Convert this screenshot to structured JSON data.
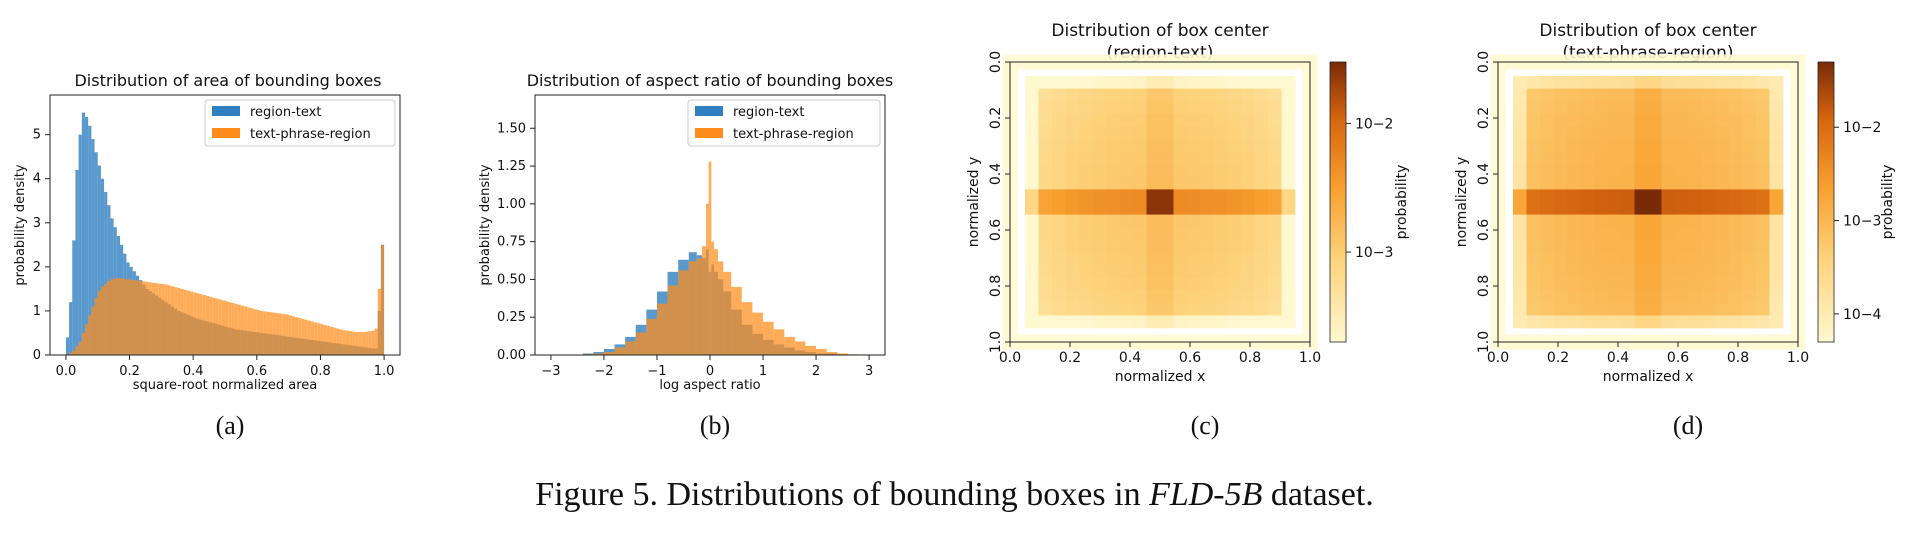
{
  "caption": {
    "prefix": "Figure 5. Distributions of bounding boxes in ",
    "dataset": "FLD-5B",
    "suffix": " dataset."
  },
  "colors": {
    "blue": "#2f7fc1",
    "orange": "#ff8c1a"
  },
  "chart_data": [
    {
      "id": "a",
      "panel_label": "(a)",
      "type": "bar",
      "title": "Distribution of area of bounding boxes",
      "xlabel": "square-root normalized area",
      "ylabel": "probability density",
      "xlim": [
        -0.05,
        1.05
      ],
      "ylim": [
        0,
        5.9
      ],
      "xticks": [
        0.0,
        0.2,
        0.4,
        0.6,
        0.8,
        1.0
      ],
      "xtick_labels": [
        "0.0",
        "0.2",
        "0.4",
        "0.6",
        "0.8",
        "1.0"
      ],
      "yticks": [
        0,
        1,
        2,
        3,
        4,
        5
      ],
      "ytick_labels": [
        "0",
        "1",
        "2",
        "3",
        "4",
        "5"
      ],
      "legend": {
        "position": "top-right",
        "entries": [
          "region-text",
          "text-phrase-region"
        ]
      },
      "bin_width": 0.01,
      "series": [
        {
          "name": "region-text",
          "color": "#2f7fc1",
          "values": [
            0.4,
            1.2,
            2.6,
            4.2,
            5.0,
            5.5,
            5.4,
            5.2,
            4.9,
            4.6,
            4.3,
            4.0,
            3.7,
            3.4,
            3.1,
            2.9,
            2.7,
            2.5,
            2.3,
            2.1,
            2.0,
            1.9,
            1.8,
            1.7,
            1.6,
            1.5,
            1.45,
            1.4,
            1.35,
            1.3,
            1.25,
            1.2,
            1.15,
            1.1,
            1.05,
            1.0,
            0.97,
            0.94,
            0.91,
            0.88,
            0.85,
            0.82,
            0.8,
            0.78,
            0.76,
            0.74,
            0.72,
            0.7,
            0.68,
            0.66,
            0.64,
            0.62,
            0.6,
            0.58,
            0.57,
            0.56,
            0.55,
            0.54,
            0.53,
            0.52,
            0.51,
            0.5,
            0.49,
            0.48,
            0.47,
            0.46,
            0.45,
            0.44,
            0.43,
            0.42,
            0.41,
            0.4,
            0.39,
            0.38,
            0.37,
            0.36,
            0.35,
            0.34,
            0.33,
            0.32,
            0.31,
            0.3,
            0.29,
            0.28,
            0.27,
            0.26,
            0.25,
            0.24,
            0.23,
            0.22,
            0.21,
            0.2,
            0.19,
            0.18,
            0.17,
            0.16,
            0.15,
            0.15,
            1.0,
            2.5
          ]
        },
        {
          "name": "text-phrase-region",
          "color": "#ff8c1a",
          "values": [
            0.0,
            0.05,
            0.1,
            0.2,
            0.3,
            0.5,
            0.7,
            0.9,
            1.1,
            1.3,
            1.45,
            1.55,
            1.62,
            1.68,
            1.72,
            1.74,
            1.75,
            1.74,
            1.73,
            1.72,
            1.71,
            1.7,
            1.69,
            1.68,
            1.67,
            1.66,
            1.65,
            1.64,
            1.63,
            1.62,
            1.61,
            1.6,
            1.58,
            1.56,
            1.54,
            1.52,
            1.5,
            1.48,
            1.46,
            1.44,
            1.42,
            1.4,
            1.38,
            1.36,
            1.34,
            1.32,
            1.3,
            1.28,
            1.26,
            1.24,
            1.22,
            1.2,
            1.18,
            1.16,
            1.14,
            1.12,
            1.1,
            1.08,
            1.06,
            1.04,
            1.02,
            1.0,
            0.99,
            0.98,
            0.97,
            0.96,
            0.95,
            0.94,
            0.93,
            0.92,
            0.9,
            0.88,
            0.86,
            0.84,
            0.82,
            0.8,
            0.78,
            0.76,
            0.74,
            0.72,
            0.7,
            0.68,
            0.66,
            0.64,
            0.62,
            0.6,
            0.58,
            0.56,
            0.55,
            0.54,
            0.53,
            0.52,
            0.52,
            0.52,
            0.53,
            0.54,
            0.55,
            0.6,
            1.5,
            2.5
          ]
        }
      ]
    },
    {
      "id": "b",
      "panel_label": "(b)",
      "type": "bar",
      "title": "Distribution of aspect ratio of bounding boxes",
      "xlabel": "log aspect ratio",
      "ylabel": "probability density",
      "xlim": [
        -3.3,
        3.3
      ],
      "ylim": [
        0,
        1.72
      ],
      "xticks": [
        -3,
        -2,
        -1,
        0,
        1,
        2,
        3
      ],
      "xtick_labels": [
        "−3",
        "−2",
        "−1",
        "0",
        "1",
        "2",
        "3"
      ],
      "yticks": [
        0,
        0.25,
        0.5,
        0.75,
        1.0,
        1.25,
        1.5
      ],
      "ytick_labels": [
        "0.00",
        "0.25",
        "0.50",
        "0.75",
        "1.00",
        "1.25",
        "1.50"
      ],
      "legend": {
        "position": "top-right",
        "entries": [
          "region-text",
          "text-phrase-region"
        ]
      },
      "x": [
        -2.5,
        -2.3,
        -2.1,
        -1.9,
        -1.7,
        -1.5,
        -1.3,
        -1.1,
        -0.9,
        -0.7,
        -0.5,
        -0.3,
        -0.2,
        -0.1,
        -0.05,
        0.0,
        0.05,
        0.1,
        0.2,
        0.3,
        0.5,
        0.7,
        0.9,
        1.1,
        1.3,
        1.5,
        1.7,
        1.9,
        2.1,
        2.3,
        2.5,
        2.7
      ],
      "series": [
        {
          "name": "region-text",
          "color": "#2f7fc1",
          "values": [
            0.0,
            0.01,
            0.02,
            0.04,
            0.07,
            0.12,
            0.2,
            0.3,
            0.42,
            0.55,
            0.63,
            0.68,
            0.66,
            0.64,
            0.7,
            0.55,
            0.6,
            0.55,
            0.5,
            0.42,
            0.3,
            0.2,
            0.14,
            0.1,
            0.07,
            0.05,
            0.03,
            0.02,
            0.01,
            0.01,
            0.005,
            0.0
          ]
        },
        {
          "name": "text-phrase-region",
          "color": "#ff8c1a",
          "values": [
            0.0,
            0.005,
            0.01,
            0.02,
            0.05,
            0.09,
            0.15,
            0.24,
            0.34,
            0.46,
            0.56,
            0.62,
            0.64,
            0.72,
            1.0,
            1.28,
            0.75,
            0.7,
            0.62,
            0.55,
            0.45,
            0.35,
            0.28,
            0.22,
            0.17,
            0.12,
            0.09,
            0.06,
            0.04,
            0.02,
            0.01,
            0.005
          ]
        }
      ]
    },
    {
      "id": "c",
      "panel_label": "(c)",
      "type": "heatmap",
      "title": "Distribution of box center",
      "subtitle": "(region-text)",
      "xlabel": "normalized x",
      "ylabel": "normalized y",
      "xlim": [
        0.0,
        1.0
      ],
      "ylim": [
        1.0,
        0.0
      ],
      "xticks": [
        0.0,
        0.2,
        0.4,
        0.6,
        0.8,
        1.0
      ],
      "xtick_labels": [
        "0.0",
        "0.2",
        "0.4",
        "0.6",
        "0.8",
        "1.0"
      ],
      "yticks": [
        0.0,
        0.2,
        0.4,
        0.6,
        0.8,
        1.0
      ],
      "ytick_labels": [
        "0.0",
        "0.2",
        "0.4",
        "0.6",
        "0.8",
        "1.0"
      ],
      "grid_size": 20,
      "colorbar": {
        "label": "probability",
        "scale": "log",
        "range": [
          0.0002,
          0.03
        ],
        "ticks": [
          0.01,
          0.001
        ],
        "tick_labels": [
          "10−2",
          "10−3"
        ]
      },
      "params": {
        "row_center_boost": 4,
        "center_peak": 4,
        "col_center_boost": 1.3,
        "edge_fade": 0.3
      }
    },
    {
      "id": "d",
      "panel_label": "(d)",
      "type": "heatmap",
      "title": "Distribution of box center",
      "subtitle": "(text-phrase-region)",
      "xlabel": "normalized x",
      "ylabel": "normalized y",
      "xlim": [
        0.0,
        1.0
      ],
      "ylim": [
        1.0,
        0.0
      ],
      "xticks": [
        0.0,
        0.2,
        0.4,
        0.6,
        0.8,
        1.0
      ],
      "xtick_labels": [
        "0.0",
        "0.2",
        "0.4",
        "0.6",
        "0.8",
        "1.0"
      ],
      "yticks": [
        0.0,
        0.2,
        0.4,
        0.6,
        0.8,
        1.0
      ],
      "ytick_labels": [
        "0.0",
        "0.2",
        "0.4",
        "0.6",
        "0.8",
        "1.0"
      ],
      "grid_size": 20,
      "colorbar": {
        "label": "probability",
        "scale": "log",
        "range": [
          5e-05,
          0.05
        ],
        "ticks": [
          0.01,
          0.001,
          0.0001
        ],
        "tick_labels": [
          "10−2",
          "10−3",
          "10−4"
        ]
      },
      "params": {
        "row_center_boost": 12,
        "center_peak": 3,
        "col_center_boost": 1.5,
        "edge_fade": 0.25
      }
    }
  ]
}
